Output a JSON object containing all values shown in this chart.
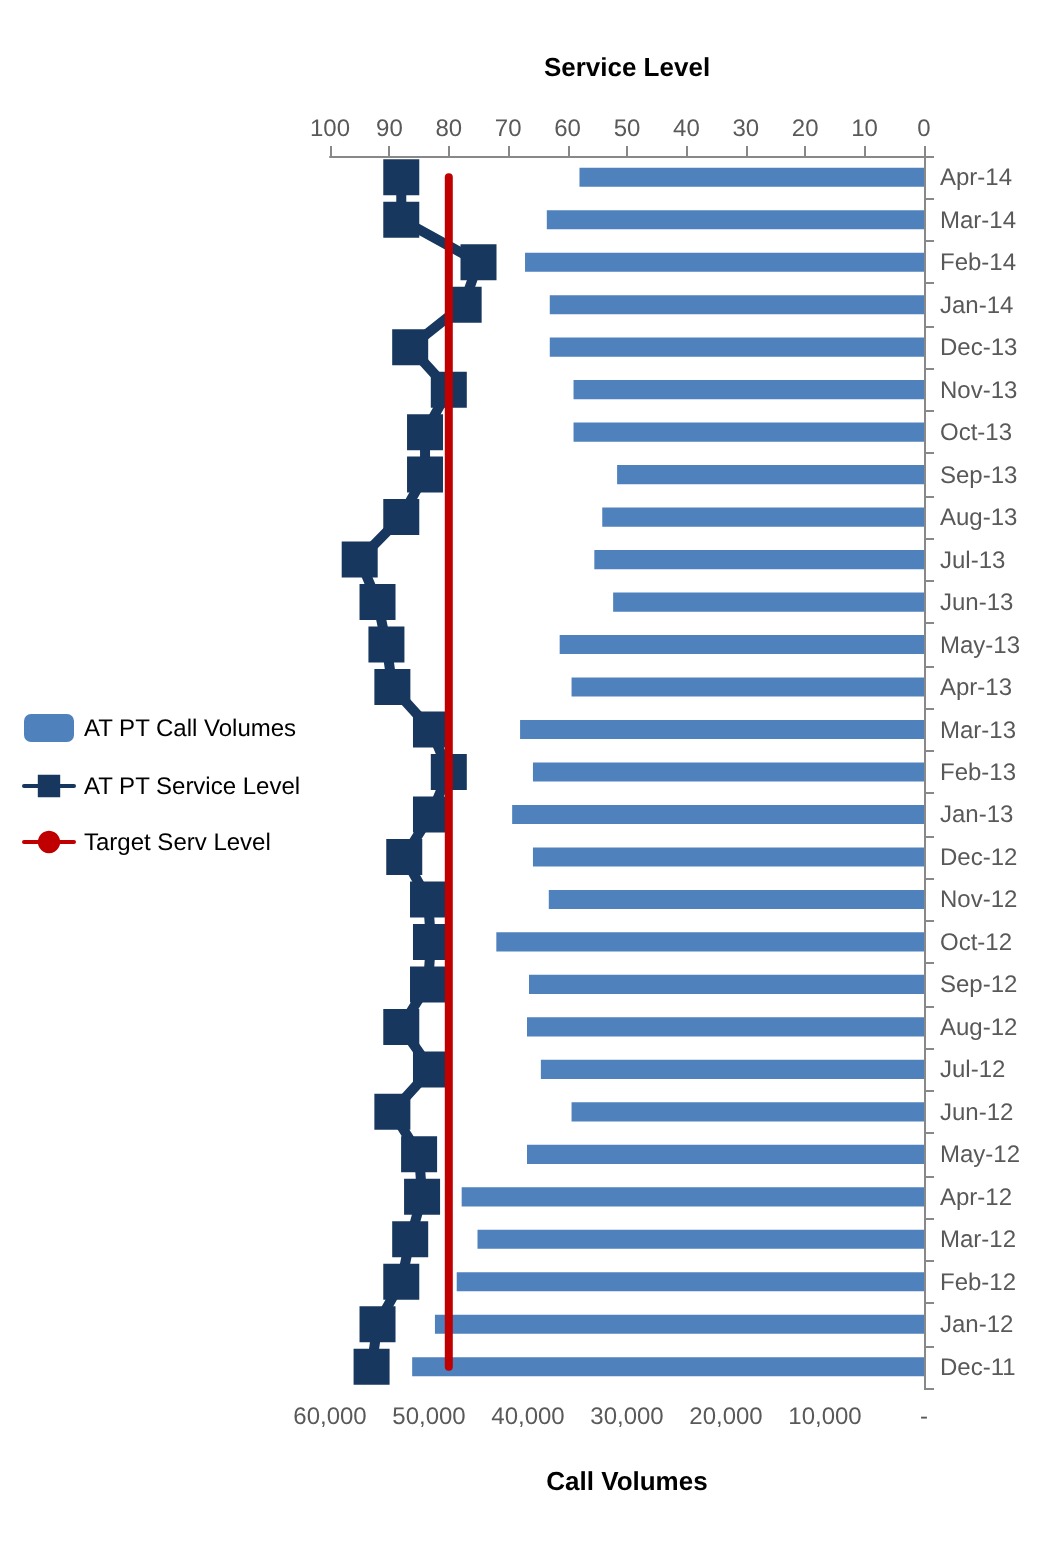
{
  "chart_data": {
    "type": "bar",
    "orientation": "horizontal",
    "xlabel": "Call Volumes",
    "x2label": "Service Level",
    "categories": [
      "Apr-14",
      "Mar-14",
      "Feb-14",
      "Jan-14",
      "Dec-13",
      "Nov-13",
      "Oct-13",
      "Sep-13",
      "Aug-13",
      "Jul-13",
      "Jun-13",
      "May-13",
      "Apr-13",
      "Mar-13",
      "Feb-13",
      "Jan-13",
      "Dec-12",
      "Nov-12",
      "Oct-12",
      "Sep-12",
      "Aug-12",
      "Jul-12",
      "Jun-12",
      "May-12",
      "Apr-12",
      "Mar-12",
      "Feb-12",
      "Jan-12",
      "Dec-11"
    ],
    "series": [
      {
        "name": "AT PT Call Volumes",
        "color": "#4f81bd",
        "values": [
          34800,
          38100,
          40300,
          37800,
          37800,
          35400,
          35400,
          31000,
          32500,
          33300,
          31400,
          36800,
          35600,
          40800,
          39500,
          41600,
          39500,
          37900,
          43200,
          39900,
          40100,
          38700,
          35600,
          40100,
          46700,
          45100,
          47200,
          49400,
          51700
        ]
      },
      {
        "name": "AT PT Service Level",
        "type": "line",
        "axis": "x2",
        "color": "#17375e",
        "marker": "square",
        "line_style": "solid",
        "values": [
          88,
          88,
          75,
          77.5,
          86.5,
          80,
          84,
          84,
          88,
          95,
          92,
          90.5,
          89.5,
          83,
          80,
          83,
          87.5,
          83.5,
          83,
          83.5,
          88,
          83,
          89.5,
          85,
          84.5,
          86.5,
          88,
          92,
          93
        ]
      },
      {
        "name": "Target Serv Level",
        "type": "line",
        "axis": "x2",
        "color": "#c00000",
        "marker": "none",
        "line_style": "solid",
        "values": [
          80,
          80,
          80,
          80,
          80,
          80,
          80,
          80,
          80,
          80,
          80,
          80,
          80,
          80,
          80,
          80,
          80,
          80,
          80,
          80,
          80,
          80,
          80,
          80,
          80,
          80,
          80,
          80,
          80
        ]
      }
    ],
    "xlim": [
      60000,
      0
    ],
    "xticks": [
      {
        "value": 0,
        "label": "-"
      },
      {
        "value": 10000,
        "label": "10,000"
      },
      {
        "value": 20000,
        "label": "20,000"
      },
      {
        "value": 30000,
        "label": "30,000"
      },
      {
        "value": 40000,
        "label": "40,000"
      },
      {
        "value": 50000,
        "label": "50,000"
      },
      {
        "value": 60000,
        "label": "60,000"
      }
    ],
    "x2lim": [
      100,
      0
    ],
    "x2ticks": [
      0,
      10,
      20,
      30,
      40,
      50,
      60,
      70,
      80,
      90,
      100
    ],
    "grid": false,
    "legend": "left"
  }
}
